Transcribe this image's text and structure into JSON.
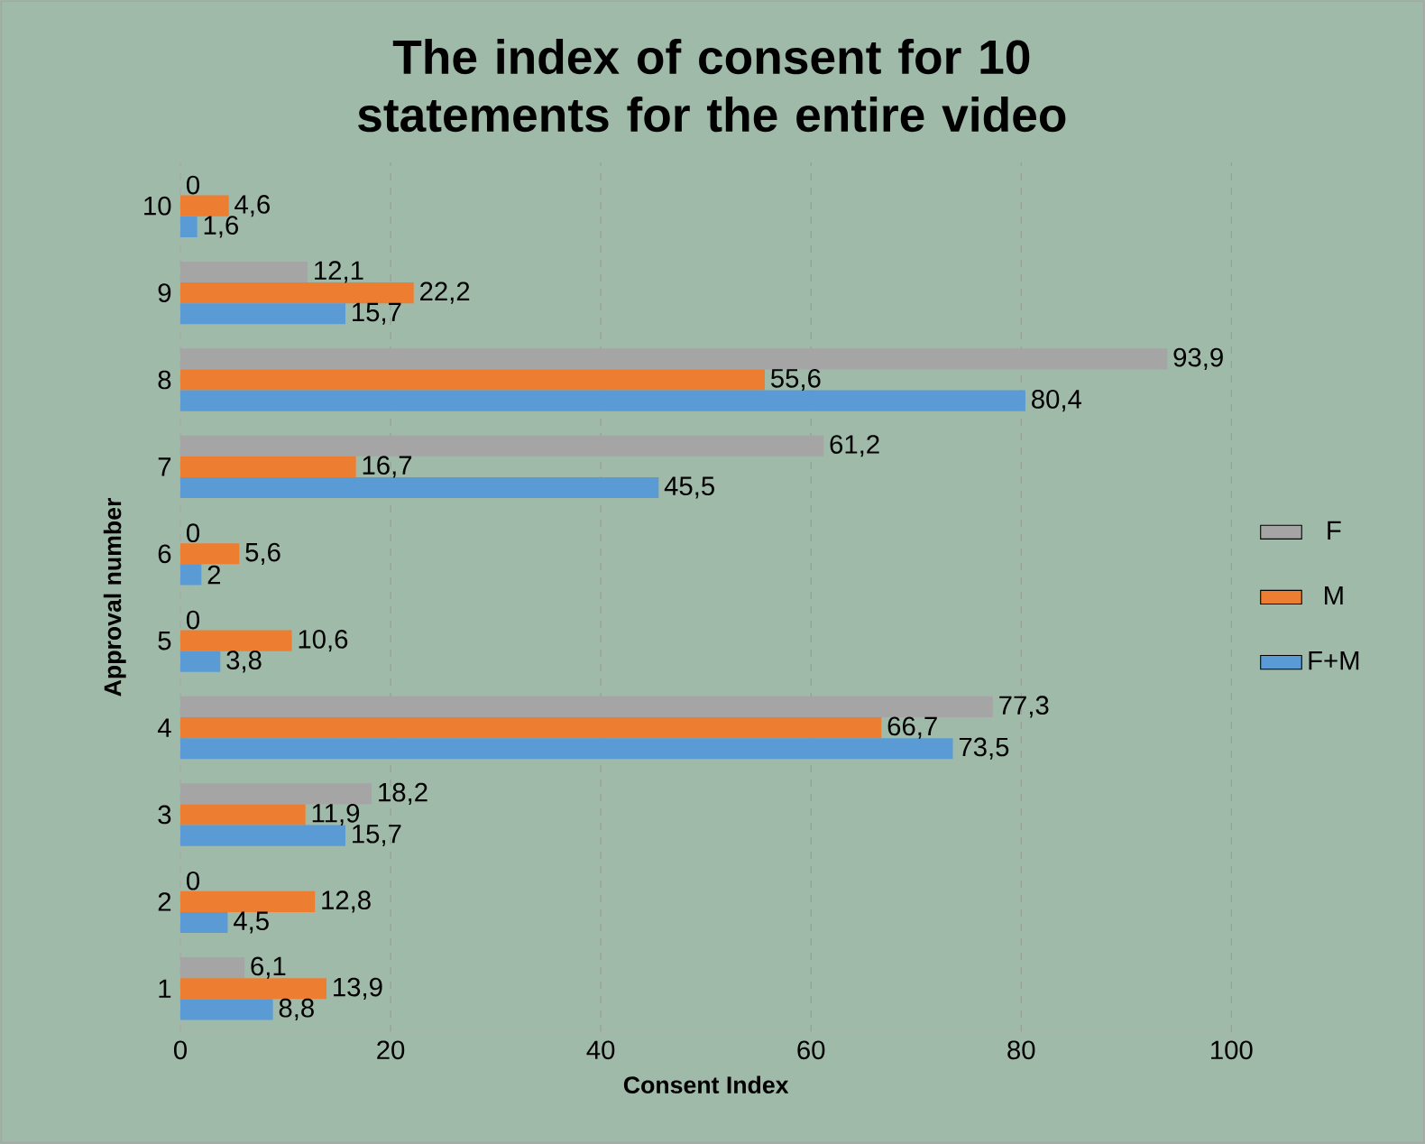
{
  "chart_data": {
    "type": "bar",
    "orientation": "horizontal",
    "title": "The index of consent for 10 statements for the entire video",
    "xlabel": "Consent Index",
    "ylabel": "Approval number",
    "categories": [
      "10",
      "9",
      "8",
      "7",
      "6",
      "5",
      "4",
      "3",
      "2",
      "1"
    ],
    "series": [
      {
        "name": "F",
        "color": "#a5a5a5",
        "values": [
          0,
          12.1,
          93.9,
          61.2,
          0,
          0,
          77.3,
          18.2,
          0,
          6.1
        ],
        "value_labels": [
          "0",
          "12,1",
          "93,9",
          "61,2",
          "0",
          "0",
          "77,3",
          "18,2",
          "0",
          "6,1"
        ]
      },
      {
        "name": "M",
        "color": "#ed7d31",
        "values": [
          4.6,
          22.2,
          55.6,
          16.7,
          5.6,
          10.6,
          66.7,
          11.9,
          12.8,
          13.9
        ],
        "value_labels": [
          "4,6",
          "22,2",
          "55,6",
          "16,7",
          "5,6",
          "10,6",
          "66,7",
          "11,9",
          "12,8",
          "13,9"
        ]
      },
      {
        "name": "F+M",
        "color": "#5b9bd5",
        "values": [
          1.6,
          15.7,
          80.4,
          45.5,
          2,
          3.8,
          73.5,
          15.7,
          4.5,
          8.8
        ],
        "value_labels": [
          "1,6",
          "15,7",
          "80,4",
          "45,5",
          "2",
          "3,8",
          "73,5",
          "15,7",
          "4,5",
          "8,8"
        ]
      }
    ],
    "xlim": [
      0,
      100
    ],
    "xticks": [
      0,
      20,
      40,
      60,
      80,
      100
    ],
    "grid": "x",
    "legend": "right"
  }
}
